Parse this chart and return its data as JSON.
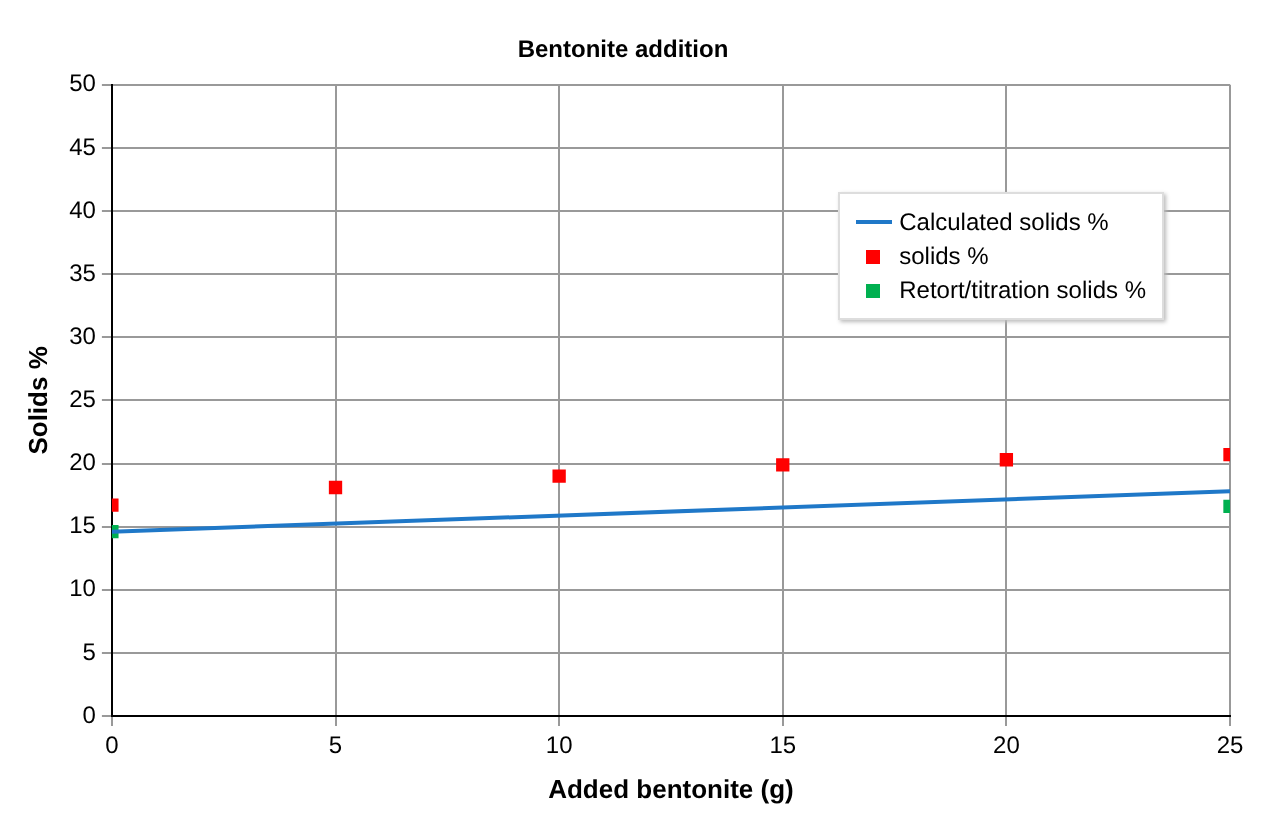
{
  "chart_data": {
    "type": "scatter",
    "title": "Bentonite addition",
    "xlabel": "Added bentonite (g)",
    "ylabel": "Solids %",
    "xlim": [
      0,
      25
    ],
    "xticks": [
      0,
      5,
      10,
      15,
      20,
      25
    ],
    "ylim": [
      0,
      50
    ],
    "yticks": [
      0,
      5,
      10,
      15,
      20,
      25,
      30,
      35,
      40,
      45,
      50
    ],
    "grid": true,
    "legend": "top right",
    "series": [
      {
        "name": "Calculated solids %",
        "type": "line",
        "marker": "none",
        "color": "#1f78c8",
        "x": [
          0,
          25
        ],
        "values": [
          14.6,
          17.8
        ]
      },
      {
        "name": "solids %",
        "marker": "square",
        "color": "#ff0000",
        "x": [
          0,
          5,
          10,
          15,
          20,
          25
        ],
        "values": [
          16.7,
          18.1,
          19.0,
          19.9,
          20.3,
          20.7
        ]
      },
      {
        "name": "Retort/titration solids %",
        "marker": "square",
        "color": "#00b050",
        "x": [
          0,
          25
        ],
        "values": [
          14.6,
          16.6
        ]
      }
    ]
  }
}
